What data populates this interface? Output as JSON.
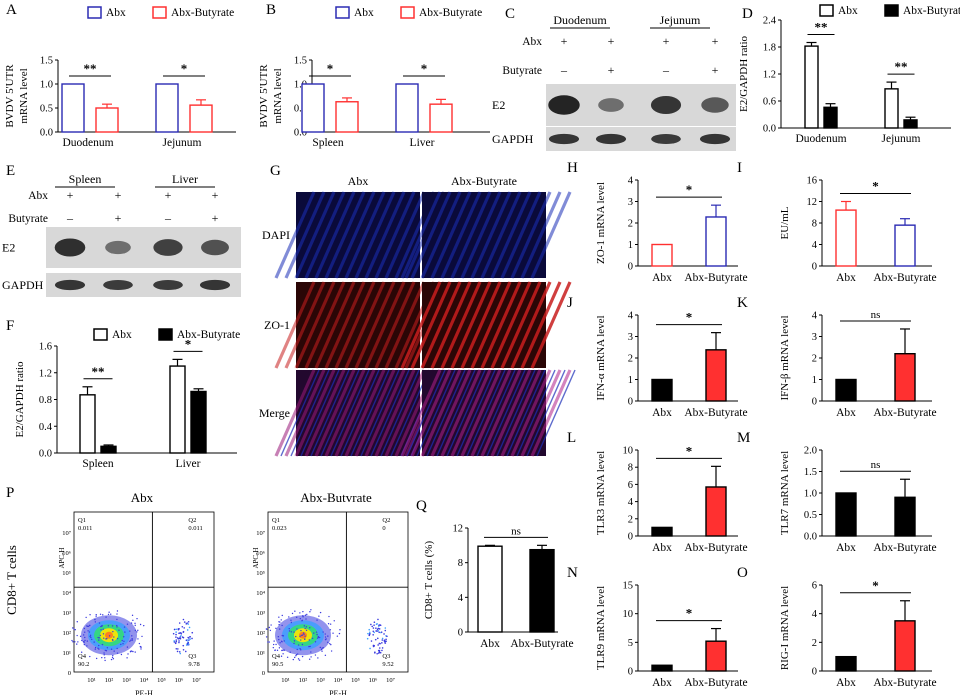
{
  "colors": {
    "abx": "#2b2bb3",
    "butyrate": "#ff3030",
    "black": "#000000",
    "white": "#ffffff",
    "blot_band": "#1a1a1a",
    "blot_bg": "#d8d8d8",
    "dapi": "#1c2fb8",
    "zo1": "#c81e1e",
    "flow_low": "#3a3adf",
    "flow_high": "#ffe600"
  },
  "panel_letters": [
    "A",
    "B",
    "C",
    "D",
    "E",
    "F",
    "G",
    "H",
    "I",
    "J",
    "K",
    "L",
    "M",
    "N",
    "O",
    "P",
    "Q"
  ],
  "chart_data": [
    {
      "id": "A",
      "type": "bar",
      "style": "outline-grouped",
      "legend": [
        "Abx",
        "Abx-Butyrate"
      ],
      "ylabel_lines": [
        "BVDV 5'UTR",
        "mRNA level"
      ],
      "yticks": [
        "0.0",
        "0.5",
        "1.0",
        "1.5"
      ],
      "ylim": [
        0,
        1.5
      ],
      "categories": [
        "Duodenum",
        "Jejunum"
      ],
      "series": [
        {
          "name": "Abx",
          "values": [
            1.0,
            1.0
          ],
          "errors": [
            0,
            0
          ]
        },
        {
          "name": "Abx-Butyrate",
          "values": [
            0.5,
            0.56
          ],
          "errors": [
            0.08,
            0.11
          ]
        }
      ],
      "sig": [
        "**",
        "*"
      ]
    },
    {
      "id": "B",
      "type": "bar",
      "style": "outline-grouped",
      "legend": [
        "Abx",
        "Abx-Butyrate"
      ],
      "ylabel_lines": [
        "BVDV 5'UTR",
        "mRNA level"
      ],
      "yticks": [
        "0.0",
        "0.5",
        "1.0",
        "1.5"
      ],
      "ylim": [
        0,
        1.5
      ],
      "categories": [
        "Spleen",
        "Liver"
      ],
      "series": [
        {
          "name": "Abx",
          "values": [
            1.0,
            1.0
          ],
          "errors": [
            0,
            0
          ]
        },
        {
          "name": "Abx-Butyrate",
          "values": [
            0.63,
            0.58
          ],
          "errors": [
            0.08,
            0.1
          ]
        }
      ],
      "sig": [
        "*",
        "*"
      ]
    },
    {
      "id": "D",
      "type": "bar",
      "style": "bw-grouped",
      "legend": [
        "Abx",
        "Abx-Butyrate"
      ],
      "ylabel_lines": [
        "E2/GAPDH ratio"
      ],
      "yticks": [
        "0.0",
        "0.6",
        "1.2",
        "1.8",
        "2.4"
      ],
      "ylim": [
        0,
        2.4
      ],
      "categories": [
        "Duodenum",
        "Jejunum"
      ],
      "series": [
        {
          "name": "Abx",
          "values": [
            1.82,
            0.87
          ],
          "errors": [
            0.08,
            0.15
          ]
        },
        {
          "name": "Abx-Butyrate",
          "values": [
            0.46,
            0.18
          ],
          "errors": [
            0.08,
            0.06
          ]
        }
      ],
      "sig": [
        "**",
        "**"
      ]
    },
    {
      "id": "F",
      "type": "bar",
      "style": "bw-grouped",
      "legend": [
        "Abx",
        "Abx-Butyrate"
      ],
      "ylabel_lines": [
        "E2/GAPDH ratio"
      ],
      "yticks": [
        "0.0",
        "0.4",
        "0.8",
        "1.2",
        "1.6"
      ],
      "ylim": [
        0,
        1.6
      ],
      "categories": [
        "Spleen",
        "Liver"
      ],
      "series": [
        {
          "name": "Abx",
          "values": [
            0.87,
            1.3
          ],
          "errors": [
            0.12,
            0.1
          ]
        },
        {
          "name": "Abx-Butyrate",
          "values": [
            0.1,
            0.92
          ],
          "errors": [
            0.02,
            0.04
          ]
        }
      ],
      "sig": [
        "**",
        "*"
      ]
    },
    {
      "id": "H",
      "type": "bar",
      "style": "color-outline",
      "ylabel_lines": [
        "ZO-1 mRNA level"
      ],
      "yticks": [
        "0",
        "1",
        "2",
        "3",
        "4"
      ],
      "ylim": [
        0,
        4
      ],
      "categories": [
        "Abx",
        "Abx-Butyrate"
      ],
      "values": [
        1.0,
        2.28
      ],
      "errors": [
        0,
        0.55
      ],
      "sig": "*"
    },
    {
      "id": "I",
      "type": "bar",
      "style": "color-outline-rev",
      "ylabel_lines": [
        "EU/mL"
      ],
      "yticks": [
        "0",
        "4",
        "8",
        "12",
        "16"
      ],
      "ylim": [
        0,
        16
      ],
      "categories": [
        "Abx",
        "Abx-Butyrate"
      ],
      "values": [
        10.4,
        7.6
      ],
      "errors": [
        1.6,
        1.2
      ],
      "sig": "*"
    },
    {
      "id": "J",
      "type": "bar",
      "style": "black-red",
      "ylabel_lines": [
        "IFN-α  mRNA level"
      ],
      "yticks": [
        "0",
        "1",
        "2",
        "3",
        "4"
      ],
      "ylim": [
        0,
        4
      ],
      "categories": [
        "Abx",
        "Abx-Butyrate"
      ],
      "values": [
        1.0,
        2.38
      ],
      "errors": [
        0,
        0.8
      ],
      "sig": "*"
    },
    {
      "id": "K",
      "type": "bar",
      "style": "black-red",
      "ylabel_lines": [
        "IFN-β  mRNA level"
      ],
      "yticks": [
        "0",
        "1",
        "2",
        "3",
        "4"
      ],
      "ylim": [
        0,
        4
      ],
      "categories": [
        "Abx",
        "Abx-Butyrate"
      ],
      "values": [
        1.0,
        2.2
      ],
      "errors": [
        0,
        1.15
      ],
      "sig": "ns"
    },
    {
      "id": "L",
      "type": "bar",
      "style": "black-red",
      "ylabel_lines": [
        "TLR3 mRNA level"
      ],
      "yticks": [
        "0",
        "2",
        "4",
        "6",
        "8",
        "10"
      ],
      "ylim": [
        0,
        10
      ],
      "categories": [
        "Abx",
        "Abx-Butyrate"
      ],
      "values": [
        1.0,
        5.7
      ],
      "errors": [
        0,
        2.4
      ],
      "sig": "*"
    },
    {
      "id": "M",
      "type": "bar",
      "style": "black-black",
      "ylabel_lines": [
        "TLR7 mRNA level"
      ],
      "yticks": [
        "0.0",
        "0.5",
        "1.0",
        "1.5",
        "2.0"
      ],
      "ylim": [
        0,
        2
      ],
      "categories": [
        "Abx",
        "Abx-Butyrate"
      ],
      "values": [
        1.0,
        0.9
      ],
      "errors": [
        0,
        0.42
      ],
      "sig": "ns"
    },
    {
      "id": "N",
      "type": "bar",
      "style": "black-red",
      "ylabel_lines": [
        "TLR9 mRNA level"
      ],
      "yticks": [
        "0",
        "5",
        "10",
        "15"
      ],
      "ylim": [
        0,
        15
      ],
      "categories": [
        "Abx",
        "Abx-Butyrate"
      ],
      "values": [
        1.0,
        5.2
      ],
      "errors": [
        0,
        2.2
      ],
      "sig": "*"
    },
    {
      "id": "O",
      "type": "bar",
      "style": "black-red",
      "ylabel_lines": [
        "RIG-I mRNA level"
      ],
      "yticks": [
        "0",
        "2",
        "4",
        "6"
      ],
      "ylim": [
        0,
        6
      ],
      "categories": [
        "Abx",
        "Abx-Butyrate"
      ],
      "values": [
        1.0,
        3.5
      ],
      "errors": [
        0,
        1.4
      ],
      "sig": "*"
    },
    {
      "id": "Q",
      "type": "bar",
      "style": "white-black",
      "ylabel_lines": [
        "CD8+ T cells (%)"
      ],
      "yticks": [
        "0",
        "4",
        "8",
        "12"
      ],
      "ylim": [
        0,
        12
      ],
      "categories": [
        "Abx",
        "Abx-Butyrate"
      ],
      "values": [
        9.9,
        9.5
      ],
      "errors": [
        0.1,
        0.5
      ],
      "sig": "ns"
    }
  ],
  "blots": {
    "C": {
      "groups": [
        "Duodenum",
        "Jejunum"
      ],
      "rows": [
        {
          "label": "Abx",
          "marks": [
            "+",
            "+",
            "+",
            "+"
          ]
        },
        {
          "label": "Butyrate",
          "marks": [
            "–",
            "+",
            "–",
            "+"
          ]
        }
      ],
      "bands": [
        "E2",
        "GAPDH"
      ],
      "e2_intensity": [
        1.0,
        0.35,
        0.85,
        0.55
      ],
      "gapdh_intensity": [
        0.85,
        0.85,
        0.8,
        0.85
      ]
    },
    "E": {
      "groups": [
        "Spleen",
        "Liver"
      ],
      "rows": [
        {
          "label": "Abx",
          "marks": [
            "+",
            "+",
            "+",
            "+"
          ]
        },
        {
          "label": "Butyrate",
          "marks": [
            "–",
            "+",
            "–",
            "+"
          ]
        }
      ],
      "bands": [
        "E2",
        "GAPDH"
      ],
      "e2_intensity": [
        0.9,
        0.35,
        0.75,
        0.6
      ],
      "gapdh_intensity": [
        0.85,
        0.8,
        0.8,
        0.85
      ]
    }
  },
  "micrographs": {
    "columns": [
      "Abx",
      "Abx-Butyrate"
    ],
    "rows": [
      "DAPI",
      "ZO-1",
      "Merge"
    ]
  },
  "flow": {
    "row_label": "CD8+ T cells",
    "plots": [
      {
        "title": "Abx",
        "q1": "Q1",
        "q1_val": "0.011",
        "q2": "Q2",
        "q2_val": "0.011",
        "q3": "Q3",
        "q3_val": "9.78",
        "q4": "Q4",
        "q4_val": "90.2"
      },
      {
        "title": "Abx-Butvrate",
        "q1": "Q1",
        "q1_val": "0.023",
        "q2": "Q2",
        "q2_val": "0",
        "q3": "Q3",
        "q3_val": "9.52",
        "q4": "Q4",
        "q4_val": "90.5"
      }
    ],
    "x_axis": "PE-H",
    "y_axis": "APC-H",
    "ticks": [
      "10¹",
      "10²",
      "10³",
      "10⁴",
      "10⁵",
      "10⁶",
      "10⁷"
    ],
    "zero": "0"
  }
}
